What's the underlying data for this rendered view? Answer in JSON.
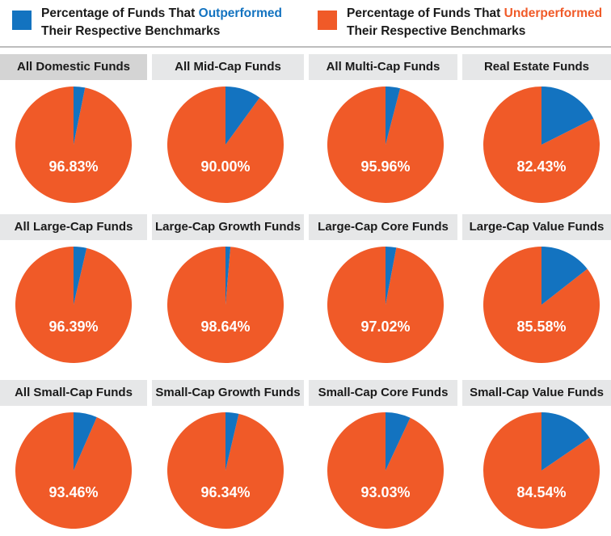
{
  "legend": {
    "outperformed": {
      "prefix": "Percentage of Funds That ",
      "highlight": "Outperformed",
      "line2": "Their Respective Benchmarks",
      "color": "#1373c0"
    },
    "underperformed": {
      "prefix": "Percentage of Funds That ",
      "highlight": "Underperformed",
      "line2": "Their Respective Benchmarks",
      "color": "#f05a28"
    }
  },
  "chart_data": {
    "type": "pie",
    "series_names": [
      "Outperformed",
      "Underperformed"
    ],
    "colors": {
      "outperformed": "#1373c0",
      "underperformed": "#f05a28"
    },
    "charts": [
      {
        "title": "All Domestic Funds",
        "underperformed": 96.83,
        "outperformed": 3.17,
        "label": "96.83%"
      },
      {
        "title": "All Mid-Cap Funds",
        "underperformed": 90.0,
        "outperformed": 10.0,
        "label": "90.00%"
      },
      {
        "title": "All Multi-Cap Funds",
        "underperformed": 95.96,
        "outperformed": 4.04,
        "label": "95.96%"
      },
      {
        "title": "Real Estate Funds",
        "underperformed": 82.43,
        "outperformed": 17.57,
        "label": "82.43%"
      },
      {
        "title": "All Large-Cap Funds",
        "underperformed": 96.39,
        "outperformed": 3.61,
        "label": "96.39%"
      },
      {
        "title": "Large-Cap Growth Funds",
        "underperformed": 98.64,
        "outperformed": 1.36,
        "label": "98.64%"
      },
      {
        "title": "Large-Cap Core Funds",
        "underperformed": 97.02,
        "outperformed": 2.98,
        "label": "97.02%"
      },
      {
        "title": "Large-Cap Value Funds",
        "underperformed": 85.58,
        "outperformed": 14.42,
        "label": "85.58%"
      },
      {
        "title": "All Small-Cap Funds",
        "underperformed": 93.46,
        "outperformed": 6.54,
        "label": "93.46%"
      },
      {
        "title": "Small-Cap Growth Funds",
        "underperformed": 96.34,
        "outperformed": 3.66,
        "label": "96.34%"
      },
      {
        "title": "Small-Cap Core Funds",
        "underperformed": 93.03,
        "outperformed": 6.97,
        "label": "93.03%"
      },
      {
        "title": "Small-Cap Value Funds",
        "underperformed": 84.54,
        "outperformed": 15.46,
        "label": "84.54%"
      }
    ]
  }
}
